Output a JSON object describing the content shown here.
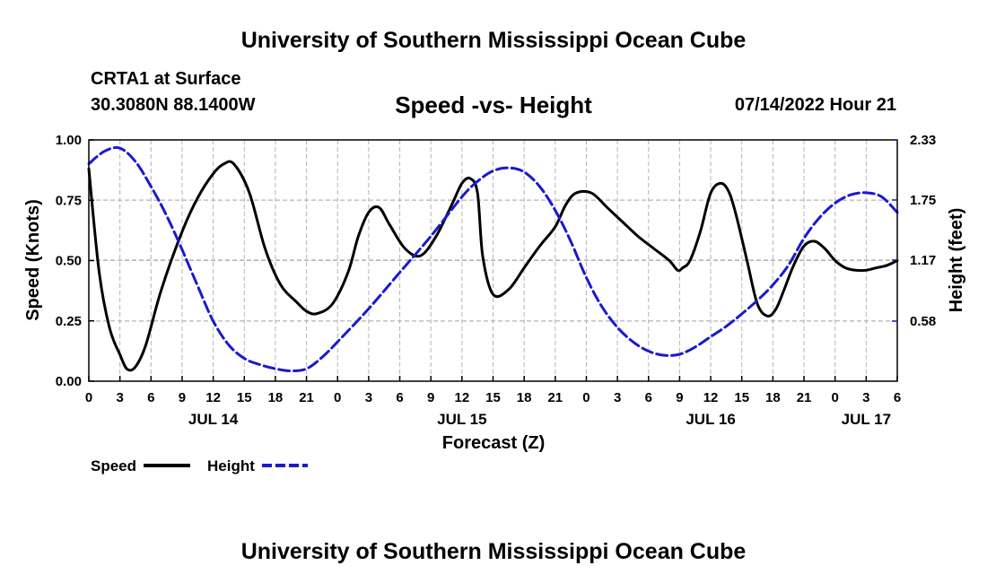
{
  "header": {
    "org_title": "University of Southern Mississippi Ocean Cube",
    "station": "CRTA1 at Surface",
    "coordinates": "30.3080N  88.1400W",
    "chart_title": "Speed -vs- Height",
    "timestamp": "07/14/2022 Hour 21"
  },
  "footer": {
    "org_title": "University of Southern Mississippi Ocean Cube"
  },
  "legend": {
    "speed_label": "Speed",
    "height_label": "Height"
  },
  "colors": {
    "speed": "#000000",
    "height": "#1a1acc",
    "grid": "#b4b4b4"
  },
  "chart_data": {
    "type": "line",
    "title": "Speed -vs- Height",
    "xlabel": "Forecast (Z)",
    "ylabel": "Speed (Knots)",
    "y2label": "Height (feet)",
    "xlim": [
      0,
      78
    ],
    "ylim": [
      0,
      1.0
    ],
    "y2lim": [
      0,
      2.33
    ],
    "grid": true,
    "legend_position": "bottom-left",
    "x_ticks": [
      0,
      3,
      6,
      9,
      12,
      15,
      18,
      21,
      24,
      27,
      30,
      33,
      36,
      39,
      42,
      45,
      48,
      51,
      54,
      57,
      60,
      63,
      66,
      69,
      72,
      75,
      78
    ],
    "x_tick_labels": [
      "0",
      "3",
      "6",
      "9",
      "12",
      "15",
      "18",
      "21",
      "0",
      "3",
      "6",
      "9",
      "12",
      "15",
      "18",
      "21",
      "0",
      "3",
      "6",
      "9",
      "12",
      "15",
      "18",
      "21",
      "0",
      "3",
      "6"
    ],
    "day_labels": [
      {
        "x": 12,
        "label": "JUL 14"
      },
      {
        "x": 36,
        "label": "JUL 15"
      },
      {
        "x": 60,
        "label": "JUL 16"
      },
      {
        "x": 75,
        "label": "JUL 17"
      }
    ],
    "y_ticks": [
      0,
      0.25,
      0.5,
      0.75,
      1.0
    ],
    "y_tick_labels": [
      "0.00",
      "0.25",
      "0.50",
      "0.75",
      "1.00"
    ],
    "y2_ticks": [
      0.58,
      1.17,
      1.75,
      2.33
    ],
    "y2_tick_labels": [
      "0.58",
      "1.17",
      "1.75",
      "2.33"
    ],
    "series": [
      {
        "name": "Speed",
        "axis": "left",
        "style": "solid",
        "x": [
          0,
          1,
          2,
          3,
          3.7,
          4.5,
          5.5,
          7,
          9,
          10.5,
          12,
          13,
          14,
          15.5,
          17,
          18.5,
          20,
          21,
          22,
          23.5,
          25,
          26,
          27,
          28,
          29,
          30.5,
          32,
          33.5,
          35,
          36,
          36.8,
          37.5,
          38,
          39,
          40.5,
          42,
          43.5,
          45,
          46,
          47,
          48.5,
          50,
          51.5,
          53,
          54.5,
          56,
          56.8,
          57.3,
          58,
          59,
          60,
          61,
          61.8,
          62.5,
          63.5,
          64.5,
          65.5,
          66.3,
          67,
          68,
          69,
          70,
          71,
          72,
          73,
          74,
          75,
          76,
          77,
          78
        ],
        "values": [
          0.88,
          0.45,
          0.22,
          0.11,
          0.05,
          0.06,
          0.15,
          0.38,
          0.62,
          0.76,
          0.86,
          0.9,
          0.9,
          0.78,
          0.55,
          0.4,
          0.33,
          0.29,
          0.28,
          0.32,
          0.45,
          0.6,
          0.7,
          0.72,
          0.65,
          0.55,
          0.52,
          0.6,
          0.73,
          0.82,
          0.84,
          0.78,
          0.52,
          0.36,
          0.38,
          0.47,
          0.56,
          0.64,
          0.73,
          0.78,
          0.78,
          0.72,
          0.66,
          0.6,
          0.55,
          0.5,
          0.46,
          0.47,
          0.5,
          0.62,
          0.78,
          0.82,
          0.78,
          0.68,
          0.5,
          0.32,
          0.27,
          0.3,
          0.37,
          0.48,
          0.56,
          0.58,
          0.55,
          0.5,
          0.47,
          0.46,
          0.46,
          0.47,
          0.48,
          0.5
        ]
      },
      {
        "name": "Height",
        "axis": "right",
        "style": "dashed",
        "x": [
          0,
          1.5,
          3,
          4.5,
          6,
          7.5,
          9,
          10.5,
          12,
          13.5,
          15,
          16.5,
          18,
          19.5,
          21,
          22.5,
          24,
          27,
          30,
          33,
          36,
          37.5,
          39,
          40.5,
          42,
          43.5,
          45,
          46.5,
          48,
          49.5,
          51,
          52.5,
          54,
          55.5,
          57,
          58.5,
          60,
          61.5,
          63,
          64.5,
          66,
          67.5,
          69,
          70.5,
          72,
          73.5,
          75,
          76.5,
          78
        ],
        "values": [
          2.1,
          2.22,
          2.25,
          2.12,
          1.88,
          1.6,
          1.27,
          0.92,
          0.58,
          0.35,
          0.22,
          0.16,
          0.12,
          0.1,
          0.12,
          0.23,
          0.38,
          0.7,
          1.05,
          1.4,
          1.78,
          1.93,
          2.03,
          2.06,
          2.02,
          1.88,
          1.65,
          1.35,
          1.0,
          0.72,
          0.52,
          0.38,
          0.29,
          0.25,
          0.26,
          0.33,
          0.43,
          0.53,
          0.65,
          0.78,
          0.93,
          1.12,
          1.38,
          1.58,
          1.72,
          1.8,
          1.82,
          1.78,
          1.63
        ]
      }
    ]
  }
}
